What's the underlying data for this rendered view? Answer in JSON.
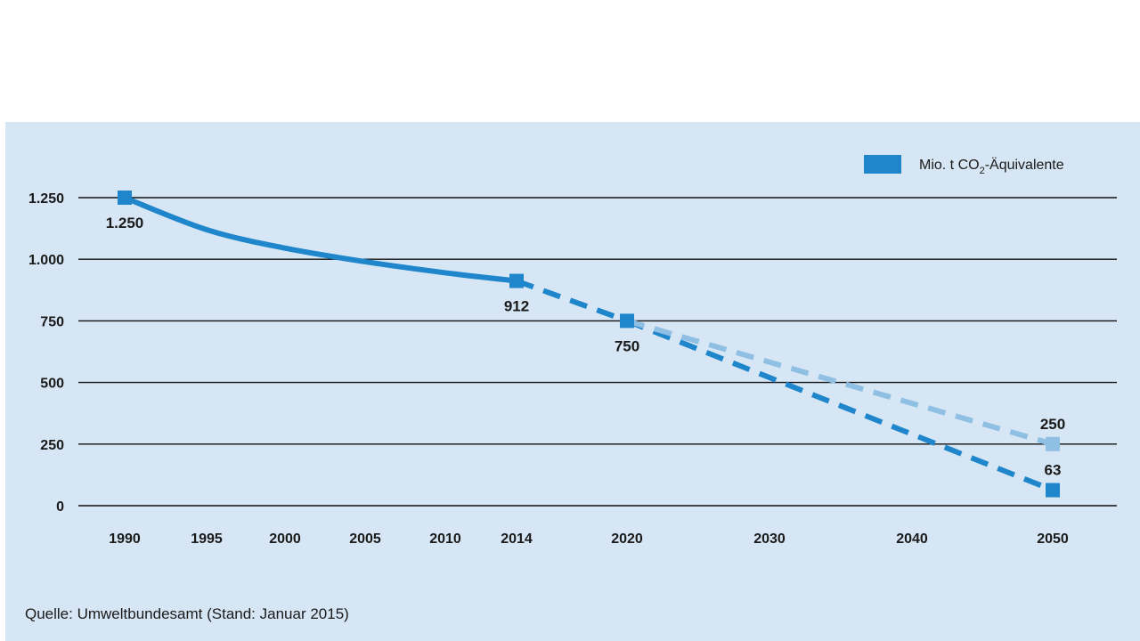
{
  "chart_data": {
    "type": "line",
    "title": "",
    "xlabel": "",
    "ylabel": "",
    "ylim": [
      0,
      1250
    ],
    "y_ticks": [
      0,
      250,
      500,
      750,
      1000,
      1250
    ],
    "y_tick_labels": [
      "0",
      "250",
      "500",
      "750",
      "1.000",
      "1.250"
    ],
    "x_ticks": [
      1990,
      1995,
      2000,
      2005,
      2010,
      2014,
      2020,
      2030,
      2040,
      2050
    ],
    "x_tick_labels": [
      "1990",
      "1995",
      "2000",
      "2005",
      "2010",
      "2014",
      "2020",
      "2030",
      "2040",
      "2050"
    ],
    "grid": true,
    "legend": {
      "label_prefix": "Mio. t CO",
      "label_subscript": "2",
      "label_suffix": "-Äquivalente",
      "position": "top-right"
    },
    "series": [
      {
        "name": "historical",
        "style": "solid",
        "color": "#1f86cc",
        "points": [
          [
            1990,
            1250
          ],
          [
            1995,
            1120
          ],
          [
            2000,
            1045
          ],
          [
            2005,
            990
          ],
          [
            2010,
            945
          ],
          [
            2014,
            912
          ]
        ]
      },
      {
        "name": "projection-to-2020",
        "style": "dashed",
        "color": "#1f86cc",
        "points": [
          [
            2014,
            912
          ],
          [
            2020,
            750
          ]
        ]
      },
      {
        "name": "target-2050-low",
        "style": "dashed",
        "color": "#1f86cc",
        "points": [
          [
            2020,
            750
          ],
          [
            2050,
            63
          ]
        ]
      },
      {
        "name": "target-2050-high",
        "style": "dashed",
        "color": "#8fbfe3",
        "points": [
          [
            2020,
            750
          ],
          [
            2050,
            250
          ]
        ]
      }
    ],
    "markers": [
      {
        "x": 1990,
        "y": 1250,
        "label": "1.250",
        "color": "#1f86cc",
        "label_pos": "below"
      },
      {
        "x": 2014,
        "y": 912,
        "label": "912",
        "color": "#1f86cc",
        "label_pos": "below"
      },
      {
        "x": 2020,
        "y": 750,
        "label": "750",
        "color": "#1f86cc",
        "label_pos": "below"
      },
      {
        "x": 2050,
        "y": 250,
        "label": "250",
        "color": "#8fbfe3",
        "label_pos": "above"
      },
      {
        "x": 2050,
        "y": 63,
        "label": "63",
        "color": "#1f86cc",
        "label_pos": "above"
      }
    ]
  },
  "source": "Quelle: Umweltbundesamt (Stand: Januar 2015)"
}
